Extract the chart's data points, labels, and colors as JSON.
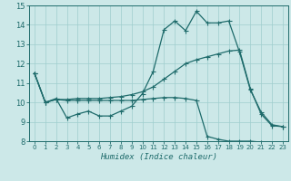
{
  "xlabel": "Humidex (Indice chaleur)",
  "bg_color": "#cce8e8",
  "grid_color": "#9fcece",
  "line_color": "#1e6b6b",
  "xlim": [
    -0.5,
    23.5
  ],
  "ylim": [
    8,
    15
  ],
  "xticks": [
    0,
    1,
    2,
    3,
    4,
    5,
    6,
    7,
    8,
    9,
    10,
    11,
    12,
    13,
    14,
    15,
    16,
    17,
    18,
    19,
    20,
    21,
    22,
    23
  ],
  "yticks": [
    8,
    9,
    10,
    11,
    12,
    13,
    14,
    15
  ],
  "line1_x": [
    0,
    1,
    2,
    3,
    4,
    5,
    6,
    7,
    8,
    9,
    10,
    11,
    12,
    13,
    14,
    15,
    16,
    17,
    18,
    19,
    20,
    21,
    22,
    23
  ],
  "line1_y": [
    11.5,
    10.0,
    10.2,
    9.2,
    9.4,
    9.55,
    9.3,
    9.3,
    9.55,
    9.8,
    10.45,
    11.6,
    13.75,
    14.2,
    13.7,
    14.7,
    14.1,
    14.1,
    14.2,
    12.6,
    10.65,
    9.5,
    8.85,
    8.75
  ],
  "line2_x": [
    0,
    1,
    2,
    3,
    4,
    5,
    6,
    7,
    8,
    9,
    10,
    11,
    12,
    13,
    14,
    15,
    16,
    17,
    18,
    19,
    20,
    21,
    22,
    23
  ],
  "line2_y": [
    11.5,
    10.0,
    10.15,
    10.15,
    10.2,
    10.2,
    10.2,
    10.25,
    10.3,
    10.4,
    10.55,
    10.8,
    11.2,
    11.6,
    12.0,
    12.2,
    12.35,
    12.5,
    12.65,
    12.7,
    10.7,
    9.4,
    8.8,
    8.75
  ],
  "line3_x": [
    0,
    1,
    2,
    3,
    4,
    5,
    6,
    7,
    8,
    9,
    10,
    11,
    12,
    13,
    14,
    15,
    16,
    17,
    18,
    19,
    20,
    21,
    22,
    23
  ],
  "line3_y": [
    11.5,
    10.0,
    10.15,
    10.1,
    10.1,
    10.1,
    10.1,
    10.1,
    10.1,
    10.1,
    10.15,
    10.2,
    10.25,
    10.25,
    10.2,
    10.1,
    8.25,
    8.1,
    8.0,
    8.0,
    8.0,
    7.95,
    7.8,
    7.75
  ]
}
